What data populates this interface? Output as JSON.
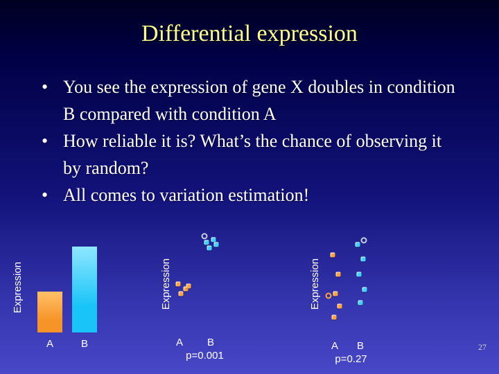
{
  "slide": {
    "title": "Differential expression",
    "bullets": [
      "You see the expression of gene X doubles in condition B compared with condition A",
      "How reliable it is? What’s the chance of observing it by random?",
      "All comes to variation estimation!"
    ],
    "page_number": "27"
  },
  "colors": {
    "background_top": "#000022",
    "background_bottom": "#4848c8",
    "title": "#ffff8c",
    "body_text": "#ffffff",
    "condition_a": "#ffa33c",
    "condition_b": "#3fd2ff"
  },
  "chart_data": [
    {
      "type": "bar",
      "title": "",
      "ylabel": "Expression",
      "categories": [
        "A",
        "B"
      ],
      "values": [
        1.0,
        2.1
      ],
      "ylim": [
        0,
        2.2
      ],
      "colors": [
        "#f79428",
        "#18c4f8"
      ],
      "colors_top": [
        "#ffc069",
        "#8fe7ff"
      ],
      "grid": false,
      "legend": false
    },
    {
      "type": "scatter",
      "title": "",
      "ylabel": "Expression",
      "categories": [
        "A",
        "B"
      ],
      "annotation": "p=0.001",
      "grid": false,
      "legend": false,
      "series": [
        {
          "name": "A",
          "color": "#ffa33c",
          "marker": "square",
          "points": [
            [
              0.06,
              0.5
            ],
            [
              0.19,
              0.45
            ],
            [
              0.11,
              0.4
            ],
            [
              0.24,
              0.48
            ]
          ]
        },
        {
          "name": "B",
          "color": "#3fd2ff",
          "marker": "square",
          "points": [
            [
              0.54,
              0.93
            ],
            [
              0.66,
              0.96
            ],
            [
              0.59,
              0.87
            ],
            [
              0.7,
              0.91
            ]
          ]
        },
        {
          "name": "outlier",
          "color": "#c9d1dd",
          "marker": "ring",
          "points": [
            [
              0.5,
              0.99
            ]
          ]
        }
      ]
    },
    {
      "type": "scatter",
      "title": "",
      "ylabel": "Expression",
      "categories": [
        "A",
        "B"
      ],
      "annotation": "p=0.27",
      "grid": false,
      "legend": false,
      "series": [
        {
          "name": "A",
          "color": "#ffa33c",
          "marker": "square",
          "points": [
            [
              0.11,
              0.8
            ],
            [
              0.2,
              0.6
            ],
            [
              0.15,
              0.4
            ],
            [
              0.22,
              0.27
            ],
            [
              0.13,
              0.16
            ]
          ]
        },
        {
          "name": "B",
          "color": "#3fd2ff",
          "marker": "square",
          "points": [
            [
              0.53,
              0.91
            ],
            [
              0.62,
              0.76
            ],
            [
              0.55,
              0.6
            ],
            [
              0.65,
              0.44
            ],
            [
              0.58,
              0.31
            ]
          ]
        },
        {
          "name": "outlier",
          "color": "#c9d1dd",
          "marker": "ring",
          "points": [
            [
              0.63,
              0.95
            ]
          ]
        },
        {
          "name": "outlier-a",
          "color": "#ffa33c",
          "marker": "ring",
          "points": [
            [
              0.04,
              0.38
            ]
          ]
        }
      ]
    }
  ]
}
